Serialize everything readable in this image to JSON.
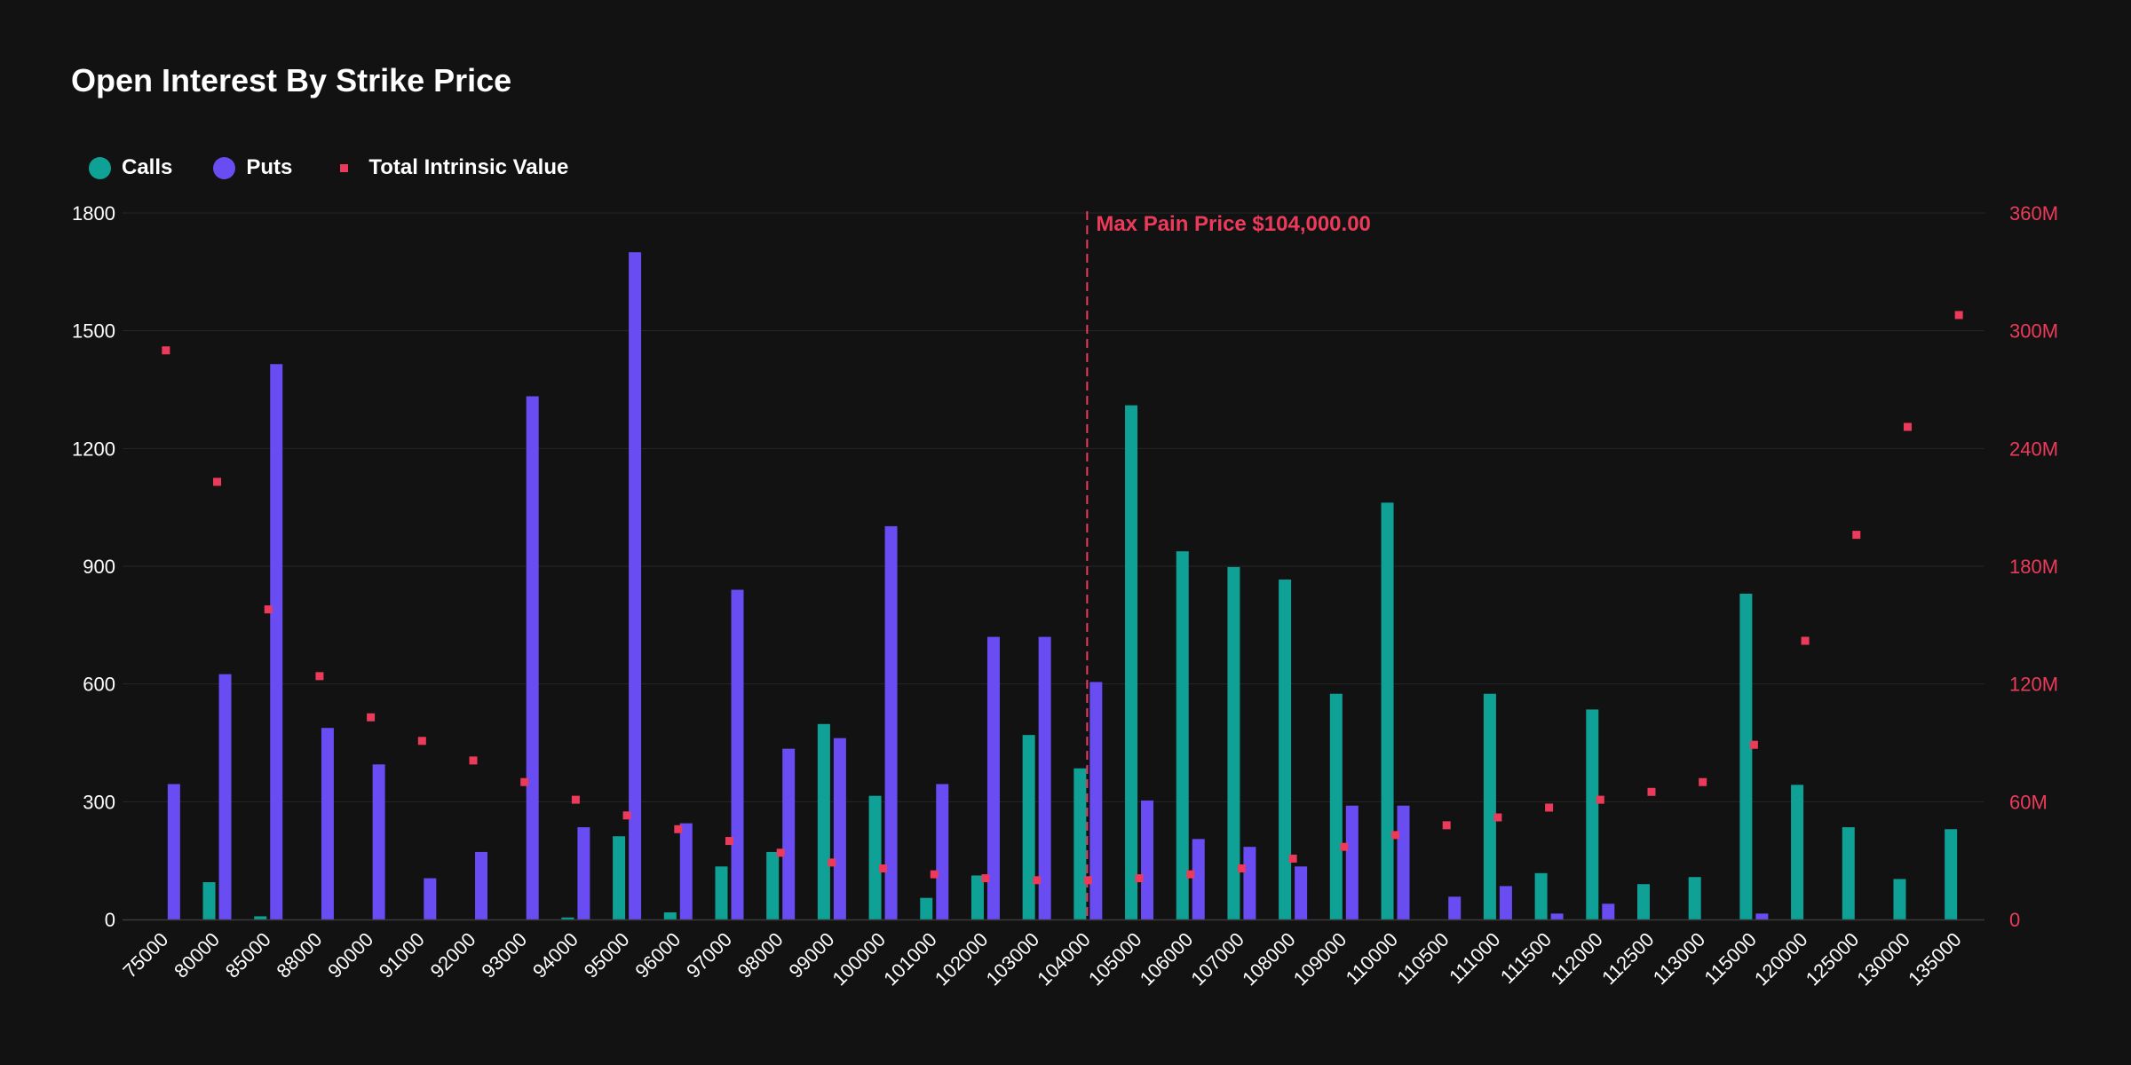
{
  "chart_data": {
    "type": "bar",
    "title": "Open Interest By Strike Price",
    "annotation": "Max Pain Price $104,000.00",
    "max_pain_category": "104000",
    "categories": [
      "75000",
      "80000",
      "85000",
      "88000",
      "90000",
      "91000",
      "92000",
      "93000",
      "94000",
      "95000",
      "96000",
      "97000",
      "98000",
      "99000",
      "100000",
      "101000",
      "102000",
      "103000",
      "104000",
      "105000",
      "106000",
      "107000",
      "108000",
      "109000",
      "110000",
      "110500",
      "111000",
      "111500",
      "112000",
      "112500",
      "113000",
      "115000",
      "120000",
      "125000",
      "130000",
      "135000"
    ],
    "series": [
      {
        "name": "Calls",
        "kind": "bar",
        "axis": "left",
        "color": "#0fa196",
        "values": [
          0,
          95,
          8,
          0,
          0,
          0,
          0,
          0,
          5,
          212,
          18,
          135,
          172,
          498,
          315,
          55,
          112,
          470,
          385,
          1310,
          938,
          898,
          866,
          575,
          1062,
          0,
          575,
          118,
          535,
          90,
          108,
          830,
          343,
          235,
          103,
          230
        ]
      },
      {
        "name": "Puts",
        "kind": "bar",
        "axis": "left",
        "color": "#6a4cf3",
        "values": [
          345,
          625,
          1415,
          488,
          395,
          105,
          172,
          1333,
          235,
          1700,
          245,
          840,
          435,
          462,
          1002,
          345,
          720,
          720,
          605,
          303,
          205,
          185,
          135,
          290,
          290,
          58,
          85,
          15,
          40,
          0,
          0,
          15,
          0,
          0,
          0,
          0
        ]
      },
      {
        "name": "Total Intrinsic Value",
        "kind": "scatter",
        "axis": "right",
        "color": "#ec3b5a",
        "values": [
          290000000,
          223000000,
          158000000,
          124000000,
          103000000,
          91000000,
          81000000,
          70000000,
          61000000,
          53000000,
          46000000,
          40000000,
          34000000,
          29000000,
          26000000,
          23000000,
          21000000,
          20000000,
          20000000,
          21000000,
          23000000,
          26000000,
          31000000,
          37000000,
          43000000,
          48000000,
          52000000,
          57000000,
          61000000,
          65000000,
          70000000,
          89000000,
          142000000,
          196000000,
          251000000,
          308000000
        ]
      }
    ],
    "y_left": {
      "min": 0,
      "max": 1800,
      "ticks": [
        "0",
        "300",
        "600",
        "900",
        "1200",
        "1500",
        "1800"
      ]
    },
    "y_right": {
      "min": 0,
      "max": 360000000,
      "ticks": [
        "0",
        "60M",
        "120M",
        "180M",
        "240M",
        "300M",
        "360M"
      ]
    },
    "grid": true,
    "legend_position": "top-left",
    "colors": {
      "background": "#121212",
      "grid": "#262626",
      "axis_text": "#ffffff",
      "right_axis_text": "#ec3b5a",
      "marker_line": "#ec3b5a"
    }
  }
}
